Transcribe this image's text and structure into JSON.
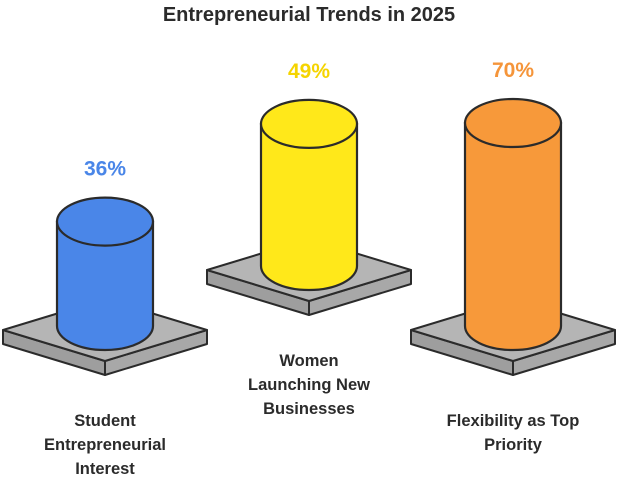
{
  "chart_data": {
    "type": "bar",
    "style": "3d-cylinders-on-platforms",
    "title": "Entrepreneurial Trends in 2025",
    "categories": [
      [
        "Student",
        "Entrepreneurial",
        "Interest"
      ],
      [
        "Women",
        "Launching New",
        "Businesses"
      ],
      [
        "Flexibility as Top",
        "Priority"
      ]
    ],
    "values": [
      36,
      49,
      70
    ],
    "value_labels": [
      "36%",
      "49%",
      "70%"
    ],
    "colors": [
      "#4a86e8",
      "#ffe81a",
      "#f7993a"
    ],
    "label_colors": [
      "#4a86e8",
      "#f5d400",
      "#f5953a"
    ],
    "platform_color": "#b5b5b5",
    "outline_color": "#2b2b2b",
    "grid": false,
    "legend": "none"
  }
}
